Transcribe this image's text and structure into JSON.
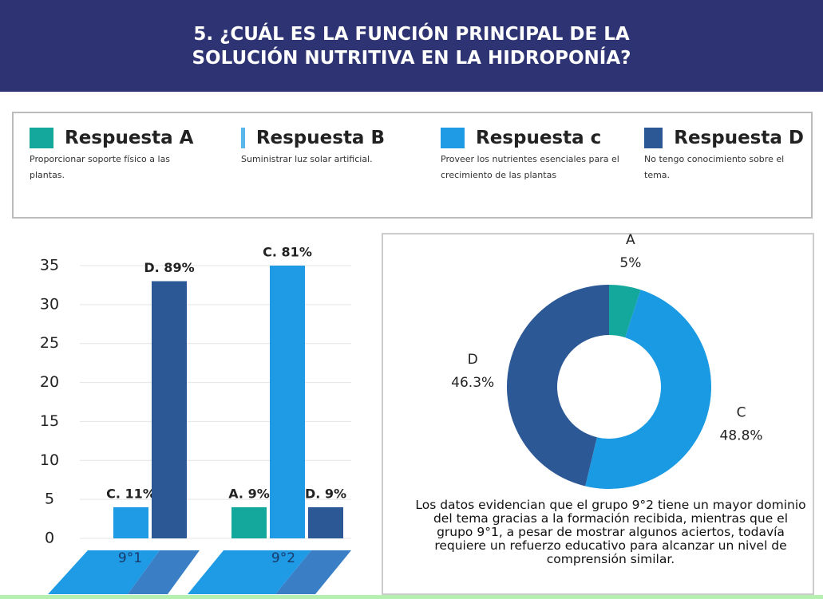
{
  "header": {
    "title": "5. ¿CUÁL ES LA FUNCIÓN PRINCIPAL DE LA SOLUCIÓN NUTRITIVA EN LA HIDROPONÍA?"
  },
  "chart_data": [
    {
      "type": "bar",
      "categories": [
        "9°1",
        "9°2"
      ],
      "series": [
        {
          "name": "Respuesta A",
          "description": "Proporcionar soporte físico a las plantas.",
          "color": "#14a79c",
          "values": [
            null,
            4
          ],
          "bar_labels": [
            null,
            "A. 9%"
          ]
        },
        {
          "name": "Respuesta B",
          "description": "Suministrar luz solar artificial.",
          "color": "#5ab7ec",
          "values": [
            null,
            null
          ],
          "bar_labels": [
            null,
            null
          ]
        },
        {
          "name": "Respuesta c",
          "description": "Proveer los nutrientes esenciales para el crecimiento de las plantas",
          "color": "#1f9be6",
          "values": [
            4,
            35
          ],
          "bar_labels": [
            "C. 11%",
            "C. 81%"
          ]
        },
        {
          "name": "Respuesta D",
          "description": "No tengo conocimiento sobre el tema.",
          "color": "#2c5896",
          "values": [
            33,
            4
          ],
          "bar_labels": [
            "D. 89%",
            "D. 9%"
          ]
        }
      ],
      "ylim": [
        0,
        35
      ],
      "yticks": [
        0,
        5,
        10,
        15,
        20,
        25,
        30,
        35
      ],
      "grid": true
    },
    {
      "type": "donut",
      "categories": [
        "A",
        "C",
        "D"
      ],
      "values": [
        5,
        48.8,
        46.3
      ],
      "value_labels": [
        "5%",
        "48.8%",
        "46.3%"
      ],
      "colors": [
        "#14a79c",
        "#1a9ae2",
        "#2c5896"
      ],
      "caption": "Los datos evidencian que el grupo 9°2 tiene un mayor dominio del tema gracias a la formación recibida, mientras que el grupo 9°1, a pesar de mostrar algunos aciertos, todavía requiere un refuerzo educativo para alcanzar un nivel de comprensión similar."
    }
  ]
}
